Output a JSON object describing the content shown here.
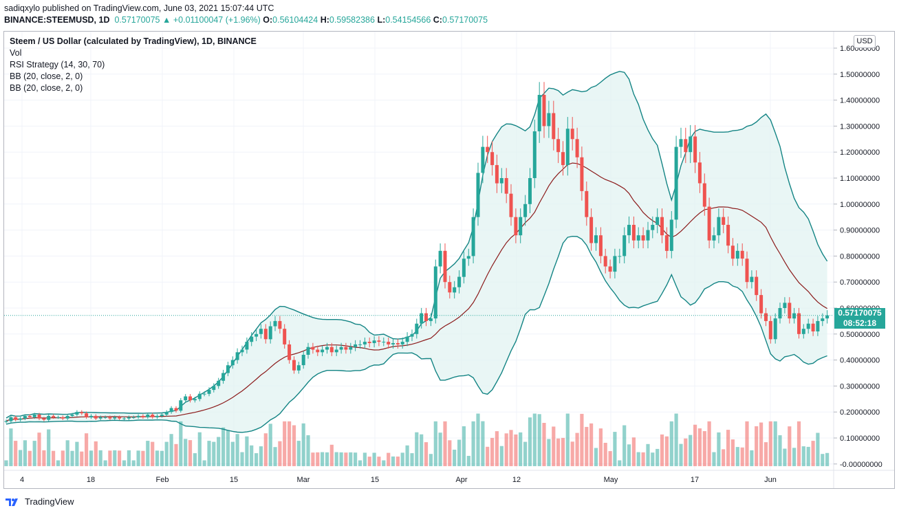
{
  "header": {
    "published_line": "sadiqxylo published on TradingView.com, June 03, 2021 15:07:44 UTC",
    "symbol_line": "BINANCE:STEEMUSD, 1D",
    "last": "0.57170075",
    "change_arrow": "▲",
    "change": "+0.01100047 (+1.96%)",
    "o_label": "O:",
    "o_value": "0.56104424",
    "h_label": "H:",
    "h_value": "0.59582386",
    "l_label": "L:",
    "l_value": "0.54154566",
    "c_label": "C:",
    "c_value": "0.57170075"
  },
  "legend": {
    "title": "Steem / US Dollar (calculated by TradingView), 1D, BINANCE",
    "vol": "Vol",
    "strategy": "RSI Strategy (14, 30, 70)",
    "bb1": "BB (20, close, 2, 0)",
    "bb2": "BB (20, close, 2, 0)"
  },
  "currency_button": "USD",
  "price_tag": {
    "price": "0.57170075",
    "countdown": "08:52:18"
  },
  "footer": {
    "brand": "TradingView"
  },
  "colors": {
    "up": "#26a69a",
    "down": "#ef5350",
    "band": "#138484",
    "basis": "#8b1a1a",
    "fill": "#e0f2f1"
  },
  "chart_data": {
    "type": "candlestick",
    "x_tick_labels": [
      "4",
      "18",
      "Feb",
      "15",
      "Mar",
      "15",
      "Apr",
      "12",
      "May",
      "17",
      "Jun"
    ],
    "y_tick_labels": [
      "1.60000000",
      "1.50000000",
      "1.40000000",
      "1.30000000",
      "1.20000000",
      "1.10000000",
      "1.00000000",
      "0.90000000",
      "0.80000000",
      "0.70000000",
      "0.60000000",
      "0.50000000",
      "0.40000000",
      "0.30000000",
      "0.20000000",
      "0.10000000",
      "-0.00000000"
    ],
    "ylim": [
      -0.03,
      1.65
    ],
    "last_price": 0.5717,
    "closes": [
      0.165,
      0.18,
      0.17,
      0.175,
      0.185,
      0.18,
      0.19,
      0.175,
      0.17,
      0.185,
      0.18,
      0.18,
      0.175,
      0.185,
      0.19,
      0.2,
      0.195,
      0.18,
      0.185,
      0.175,
      0.18,
      0.18,
      0.175,
      0.18,
      0.175,
      0.175,
      0.18,
      0.18,
      0.185,
      0.18,
      0.19,
      0.18,
      0.185,
      0.19,
      0.2,
      0.215,
      0.205,
      0.245,
      0.26,
      0.245,
      0.25,
      0.27,
      0.27,
      0.285,
      0.3,
      0.32,
      0.35,
      0.38,
      0.4,
      0.43,
      0.44,
      0.47,
      0.49,
      0.5,
      0.52,
      0.48,
      0.53,
      0.55,
      0.52,
      0.46,
      0.4,
      0.36,
      0.38,
      0.42,
      0.45,
      0.44,
      0.43,
      0.44,
      0.45,
      0.43,
      0.44,
      0.45,
      0.44,
      0.45,
      0.46,
      0.46,
      0.47,
      0.465,
      0.475,
      0.47,
      0.47,
      0.46,
      0.465,
      0.46,
      0.47,
      0.49,
      0.5,
      0.54,
      0.58,
      0.55,
      0.56,
      0.76,
      0.82,
      0.7,
      0.66,
      0.68,
      0.72,
      0.79,
      0.8,
      0.95,
      1.12,
      1.22,
      1.2,
      1.15,
      1.08,
      1.1,
      1.04,
      0.95,
      0.88,
      0.95,
      1.0,
      1.1,
      1.28,
      1.42,
      1.3,
      1.35,
      1.25,
      1.2,
      1.15,
      1.29,
      1.25,
      1.18,
      1.05,
      0.95,
      0.85,
      0.88,
      0.8,
      0.76,
      0.74,
      0.8,
      0.8,
      0.88,
      0.92,
      0.86,
      0.88,
      0.86,
      0.9,
      0.92,
      0.95,
      0.88,
      0.82,
      0.94,
      1.22,
      1.25,
      1.2,
      1.26,
      1.16,
      1.08,
      0.99,
      0.86,
      0.88,
      0.95,
      0.92,
      0.84,
      0.79,
      0.82,
      0.79,
      0.7,
      0.72,
      0.65,
      0.58,
      0.55,
      0.48,
      0.56,
      0.6,
      0.62,
      0.56,
      0.58,
      0.5,
      0.52,
      0.54,
      0.51,
      0.55,
      0.56,
      0.5717
    ]
  }
}
